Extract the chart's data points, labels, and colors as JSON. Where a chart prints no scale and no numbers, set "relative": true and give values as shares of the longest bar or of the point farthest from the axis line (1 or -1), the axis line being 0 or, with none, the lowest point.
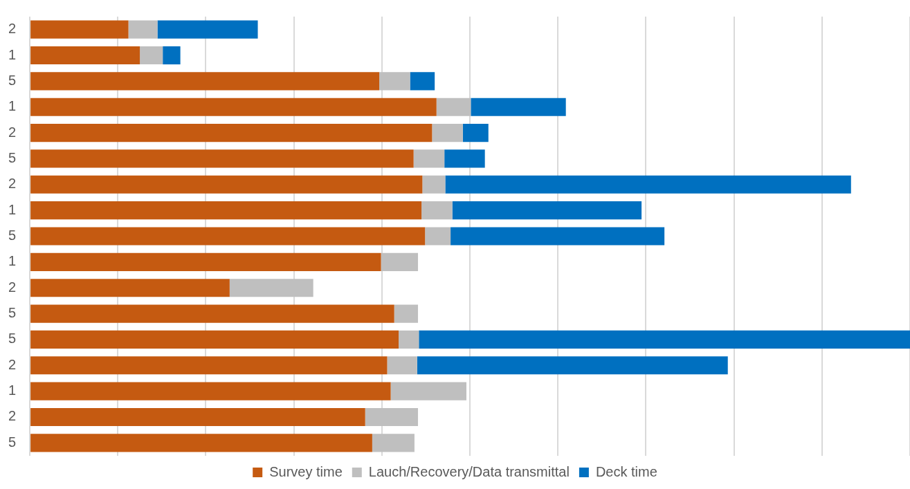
{
  "chart_data": {
    "type": "bar",
    "orientation": "horizontal",
    "stacked": true,
    "relative": true,
    "grid": "x",
    "legend": "bottom",
    "categories": [
      "2",
      "1",
      "5",
      "1",
      "2",
      "5",
      "2",
      "1",
      "5",
      "1",
      "2",
      "5",
      "5",
      "2",
      "1",
      "2",
      "5"
    ],
    "series": [
      {
        "name": "Survey time",
        "color": "#c55a11",
        "values": [
          0.112,
          0.125,
          0.397,
          0.462,
          0.457,
          0.436,
          0.446,
          0.445,
          0.449,
          0.399,
          0.227,
          0.414,
          0.419,
          0.406,
          0.41,
          0.381,
          0.389
        ]
      },
      {
        "name": "Lauch/Recovery/Data transmittal",
        "color": "#bfbfbf",
        "values": [
          0.033,
          0.026,
          0.035,
          0.039,
          0.035,
          0.035,
          0.026,
          0.035,
          0.029,
          0.042,
          0.095,
          0.027,
          0.023,
          0.034,
          0.086,
          0.06,
          0.048
        ]
      },
      {
        "name": "Deck time",
        "color": "#0070c0",
        "values": [
          0.114,
          0.02,
          0.028,
          0.108,
          0.029,
          0.046,
          0.461,
          0.215,
          0.243,
          null,
          null,
          null,
          0.558,
          0.353,
          null,
          null,
          null
        ]
      }
    ]
  }
}
